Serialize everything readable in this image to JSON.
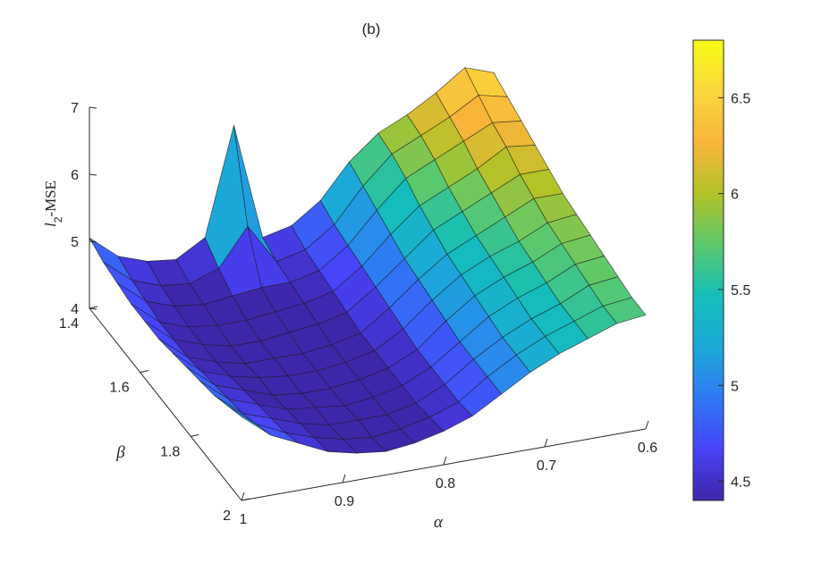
{
  "chart_data": {
    "type": "surface",
    "title": "(b)",
    "xlabel": "α",
    "ylabel": "β",
    "zlabel_base": "l",
    "zlabel_sub": "2",
    "zlabel_rest": "-MSE",
    "x_ticks": [
      "1",
      "0.9",
      "0.8",
      "0.7",
      "0.6"
    ],
    "x_tick_values": [
      1,
      0.9,
      0.8,
      0.7,
      0.6
    ],
    "y_ticks": [
      "1.4",
      "1.6",
      "1.8",
      "2"
    ],
    "y_tick_values": [
      1.4,
      1.6,
      1.8,
      2
    ],
    "z_ticks": [
      "4",
      "5",
      "6",
      "7"
    ],
    "z_tick_values": [
      4,
      5,
      6,
      7
    ],
    "xlim": [
      0.6,
      1
    ],
    "ylim": [
      1.4,
      2
    ],
    "zlim": [
      4,
      7
    ],
    "alpha": [
      1.0,
      0.9714,
      0.9429,
      0.9143,
      0.8857,
      0.8571,
      0.8286,
      0.8,
      0.7714,
      0.7429,
      0.7143,
      0.6857,
      0.6571,
      0.6286,
      0.6
    ],
    "beta": [
      1.4,
      1.4545,
      1.5091,
      1.5636,
      1.6182,
      1.6727,
      1.7273,
      1.7818,
      1.8364,
      1.8909,
      1.9455,
      2.0
    ],
    "mse_rows_by_beta": [
      [
        5.05,
        4.7,
        4.55,
        4.5,
        4.75,
        6.35,
        4.6,
        4.7,
        5.0,
        5.5,
        5.85,
        6.05,
        6.3,
        6.6,
        6.45
      ],
      [
        4.95,
        4.6,
        4.45,
        4.4,
        4.55,
        5.1,
        4.5,
        4.6,
        4.9,
        5.4,
        5.8,
        6.0,
        6.2,
        6.45,
        6.35
      ],
      [
        4.9,
        4.55,
        4.4,
        4.35,
        4.4,
        4.45,
        4.45,
        4.55,
        4.85,
        5.3,
        5.7,
        5.9,
        6.1,
        6.3,
        6.25
      ],
      [
        4.85,
        4.5,
        4.35,
        4.3,
        4.3,
        4.35,
        4.4,
        4.5,
        4.8,
        5.2,
        5.55,
        5.75,
        5.95,
        6.2,
        6.15
      ],
      [
        4.85,
        4.5,
        4.35,
        4.25,
        4.25,
        4.3,
        4.35,
        4.45,
        4.75,
        5.1,
        5.45,
        5.65,
        5.85,
        6.05,
        6.05
      ],
      [
        4.85,
        4.5,
        4.35,
        4.25,
        4.25,
        4.25,
        4.3,
        4.4,
        4.7,
        5.05,
        5.35,
        5.55,
        5.75,
        5.95,
        5.95
      ],
      [
        4.9,
        4.55,
        4.4,
        4.3,
        4.25,
        4.25,
        4.3,
        4.4,
        4.65,
        5.0,
        5.3,
        5.5,
        5.65,
        5.85,
        5.9
      ],
      [
        4.95,
        4.6,
        4.45,
        4.3,
        4.25,
        4.25,
        4.3,
        4.4,
        4.6,
        4.95,
        5.25,
        5.45,
        5.6,
        5.8,
        5.85
      ],
      [
        5.0,
        4.65,
        4.5,
        4.35,
        4.3,
        4.25,
        4.3,
        4.4,
        4.6,
        4.9,
        5.2,
        5.4,
        5.55,
        5.75,
        5.8
      ],
      [
        5.05,
        4.7,
        4.55,
        4.4,
        4.3,
        4.3,
        4.3,
        4.4,
        4.6,
        4.9,
        5.15,
        5.35,
        5.5,
        5.7,
        5.75
      ],
      [
        5.15,
        4.8,
        4.6,
        4.45,
        4.35,
        4.3,
        4.35,
        4.45,
        4.6,
        4.9,
        5.15,
        5.35,
        5.5,
        5.65,
        5.7
      ],
      [
        5.25,
        4.9,
        4.7,
        4.5,
        4.4,
        4.35,
        4.4,
        4.5,
        4.65,
        4.9,
        5.15,
        5.35,
        5.5,
        5.65,
        5.7
      ]
    ],
    "colorbar": {
      "ticks": [
        "4.5",
        "5",
        "5.5",
        "6",
        "6.5"
      ],
      "tick_values": [
        4.5,
        5,
        5.5,
        6,
        6.5
      ],
      "range": [
        4.4,
        6.8
      ],
      "colormap": [
        "#3e26a8",
        "#4743f8",
        "#2f79f5",
        "#1ba9d8",
        "#14beb9",
        "#5cc86c",
        "#b2c227",
        "#f9b53a",
        "#f7d73c",
        "#f9fb15"
      ]
    }
  }
}
